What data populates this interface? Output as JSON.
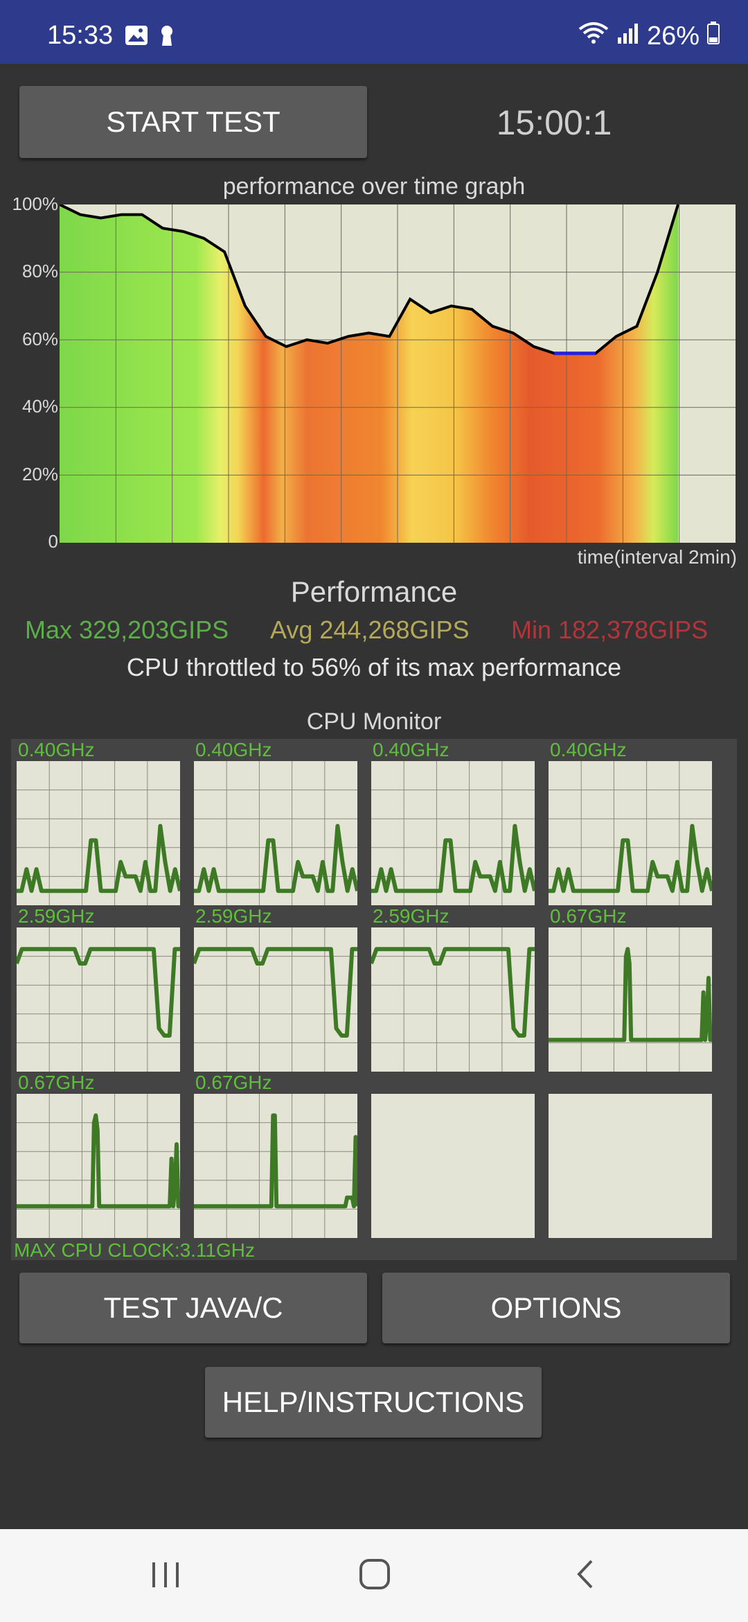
{
  "status_bar": {
    "time": "15:33",
    "battery_percent": "26%",
    "icons": [
      "gallery-icon",
      "keyhole-icon",
      "wifi-icon",
      "signal-icon",
      "battery-icon"
    ]
  },
  "controls": {
    "start_test_label": "START TEST",
    "timer": "15:00:1"
  },
  "performance_graph": {
    "title": "performance over time graph",
    "y_ticks": [
      "100%",
      "80%",
      "60%",
      "40%",
      "20%",
      "0"
    ],
    "x_label": "time(interval 2min)"
  },
  "performance": {
    "heading": "Performance",
    "max": "Max 329,203GIPS",
    "avg": "Avg 244,268GIPS",
    "min": "Min 182,378GIPS",
    "throttle": "CPU throttled to 56% of its max performance"
  },
  "cpu_monitor": {
    "title": "CPU Monitor",
    "cores": [
      {
        "freq": "0.40GHz"
      },
      {
        "freq": "0.40GHz"
      },
      {
        "freq": "0.40GHz"
      },
      {
        "freq": "0.40GHz"
      },
      {
        "freq": "2.59GHz"
      },
      {
        "freq": "2.59GHz"
      },
      {
        "freq": "2.59GHz"
      },
      {
        "freq": "0.67GHz"
      },
      {
        "freq": "0.67GHz"
      },
      {
        "freq": "0.67GHz"
      },
      {
        "freq": ""
      },
      {
        "freq": ""
      }
    ],
    "max_cpu_clock": "MAX CPU CLOCK:3.11GHz"
  },
  "buttons": {
    "test_java": "TEST JAVA/C",
    "options": "OPTIONS",
    "help": "HELP/INSTRUCTIONS"
  },
  "colors": {
    "status_bar": "#2e3a8c",
    "good": "#5cae4a",
    "avg": "#b4a85a",
    "bad": "#b5343a",
    "core_line": "#3e7a26"
  },
  "chart_data": {
    "type": "area",
    "x_label": "time(interval 2min)",
    "ylim": [
      0,
      100
    ],
    "x": [
      0,
      0.5,
      1,
      1.5,
      2,
      2.5,
      3,
      3.5,
      4,
      4.5,
      5,
      5.5,
      6,
      6.5,
      7,
      7.5,
      8,
      8.5,
      9,
      9.5,
      10,
      10.5,
      11,
      11.5,
      12,
      12.5,
      13,
      13.5,
      14,
      14.5,
      15
    ],
    "values": [
      100,
      97,
      96,
      97,
      97,
      93,
      92,
      90,
      86,
      70,
      61,
      58,
      60,
      59,
      61,
      62,
      61,
      72,
      68,
      70,
      69,
      64,
      62,
      58,
      56,
      56,
      56,
      61,
      64,
      80,
      100
    ],
    "min_marked_at": 56
  }
}
